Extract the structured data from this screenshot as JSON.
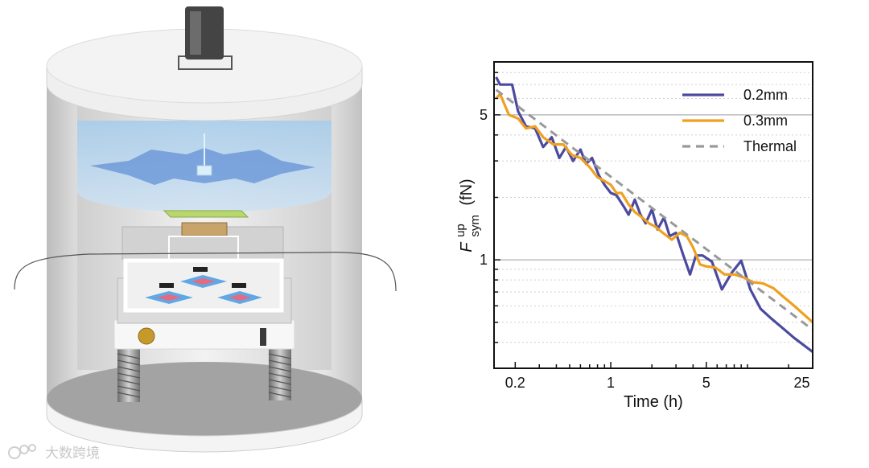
{
  "watermark": {
    "text": "大数跨境",
    "icon": "chain-logo-icon"
  },
  "apparatus": {
    "illustration": "vacuum-chamber-schematic"
  },
  "colors": {
    "series_0": "#4b4a9e",
    "series_1": "#f0a020",
    "series_2": "#999999",
    "grid_major": "#9a9a9a",
    "grid_minor": "#cfcfcf"
  },
  "chart_data": {
    "type": "line",
    "title": "",
    "xlabel": "Time (h)",
    "ylabel": {
      "symbol": "F",
      "superscript": "up",
      "subscript": "sym",
      "unit": "(fN)"
    },
    "xscale": "log",
    "yscale": "log",
    "xlim": [
      0.14,
      30
    ],
    "ylim": [
      0.3,
      9
    ],
    "xticks": [
      0.2,
      1,
      5,
      25
    ],
    "xtick_labels": [
      "0.2",
      "1",
      "5",
      "25"
    ],
    "yticks": [
      1,
      5
    ],
    "ytick_labels": [
      "1",
      "5"
    ],
    "grid": "horizontal",
    "legend_position": "top-right",
    "series": [
      {
        "name": "0.2mm",
        "style": "solid",
        "x": [
          0.145,
          0.155,
          0.19,
          0.21,
          0.24,
          0.28,
          0.32,
          0.37,
          0.42,
          0.47,
          0.53,
          0.6,
          0.66,
          0.73,
          0.82,
          0.9,
          1.0,
          1.1,
          1.25,
          1.35,
          1.5,
          1.65,
          1.8,
          2.0,
          2.2,
          2.45,
          2.7,
          3.0,
          3.4,
          3.8,
          4.2,
          4.7,
          5.5,
          6.5,
          7.7,
          9.0,
          10.5,
          12.5,
          15.0,
          18.0,
          22.0,
          30.0
        ],
        "y": [
          7.6,
          7.0,
          7.0,
          5.2,
          4.4,
          4.3,
          3.5,
          3.9,
          3.1,
          3.5,
          3.0,
          3.4,
          2.9,
          3.1,
          2.55,
          2.3,
          2.1,
          2.05,
          1.8,
          1.65,
          1.95,
          1.65,
          1.5,
          1.75,
          1.4,
          1.6,
          1.3,
          1.35,
          1.05,
          0.85,
          1.05,
          1.05,
          0.98,
          0.72,
          0.87,
          0.99,
          0.72,
          0.58,
          0.52,
          0.47,
          0.42,
          0.36
        ]
      },
      {
        "name": "0.3mm",
        "style": "solid",
        "x": [
          0.145,
          0.155,
          0.18,
          0.21,
          0.24,
          0.28,
          0.32,
          0.38,
          0.45,
          0.52,
          0.6,
          0.7,
          0.8,
          0.9,
          1.0,
          1.1,
          1.2,
          1.35,
          1.5,
          1.7,
          1.9,
          2.1,
          2.4,
          2.8,
          3.2,
          3.6,
          4.0,
          4.5,
          5.0,
          5.8,
          6.8,
          8.0,
          9.5,
          11.0,
          13.0,
          15.5,
          18.0,
          22.0,
          30.0
        ],
        "y": [
          6.0,
          6.3,
          5.0,
          4.8,
          4.3,
          4.4,
          3.9,
          3.6,
          3.6,
          3.2,
          3.1,
          2.8,
          2.5,
          2.4,
          2.3,
          2.1,
          2.1,
          1.85,
          1.7,
          1.6,
          1.5,
          1.45,
          1.35,
          1.25,
          1.35,
          1.3,
          1.15,
          0.95,
          0.93,
          0.92,
          0.85,
          0.85,
          0.82,
          0.78,
          0.77,
          0.73,
          0.67,
          0.6,
          0.5
        ]
      },
      {
        "name": "Thermal",
        "style": "dashed",
        "x": [
          0.145,
          30.0
        ],
        "y": [
          6.6,
          0.46
        ]
      }
    ]
  }
}
